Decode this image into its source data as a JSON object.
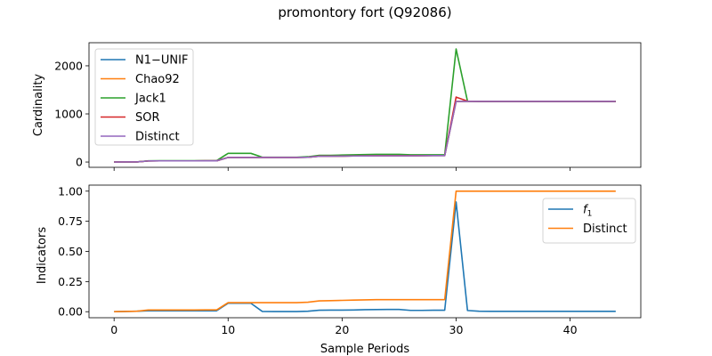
{
  "figure": {
    "title": "promontory fort (Q92086)",
    "xlabel": "Sample Periods"
  },
  "colors": {
    "blue": "#1f77b4",
    "orange": "#ff7f0e",
    "green": "#2ca02c",
    "red": "#d62728",
    "purple": "#9467bd"
  },
  "chart_data": [
    {
      "type": "line",
      "title": "",
      "xlabel": "",
      "ylabel": "Cardinality",
      "xlim": [
        -2.2,
        46.2
      ],
      "ylim": [
        -110,
        2480
      ],
      "xticks": [
        0,
        10,
        20,
        30,
        40
      ],
      "yticks": [
        0,
        1000,
        2000
      ],
      "ytick_labels": [
        "0",
        "1000",
        "2000"
      ],
      "legend_position": "upper-left",
      "x": [
        0,
        1,
        2,
        3,
        4,
        5,
        6,
        7,
        8,
        9,
        10,
        11,
        12,
        13,
        14,
        15,
        16,
        17,
        18,
        19,
        20,
        21,
        22,
        23,
        24,
        25,
        26,
        27,
        28,
        29,
        30,
        31,
        32,
        33,
        34,
        35,
        36,
        37,
        38,
        39,
        40,
        41,
        42,
        43,
        44
      ],
      "series": [
        {
          "name": "N1−UNIF",
          "color": "#1f77b4",
          "values": [
            0,
            2,
            2,
            22,
            24,
            24,
            24,
            24,
            25,
            25,
            95,
            95,
            95,
            95,
            95,
            95,
            95,
            100,
            120,
            120,
            122,
            126,
            128,
            130,
            130,
            130,
            130,
            132,
            133,
            133,
            1260,
            1260,
            1260,
            1260,
            1260,
            1260,
            1260,
            1260,
            1260,
            1260,
            1260,
            1260,
            1260,
            1260,
            1260
          ]
        },
        {
          "name": "Chao92",
          "color": "#ff7f0e",
          "values": [
            0,
            2,
            2,
            22,
            24,
            24,
            24,
            24,
            25,
            25,
            95,
            95,
            95,
            95,
            95,
            95,
            95,
            100,
            120,
            120,
            122,
            126,
            128,
            130,
            130,
            130,
            130,
            132,
            133,
            133,
            1260,
            1260,
            1260,
            1260,
            1260,
            1260,
            1260,
            1260,
            1260,
            1260,
            1260,
            1260,
            1260,
            1260,
            1260
          ]
        },
        {
          "name": "Jack1",
          "color": "#2ca02c",
          "values": [
            0,
            2,
            2,
            25,
            27,
            28,
            28,
            28,
            28,
            30,
            180,
            180,
            180,
            100,
            100,
            100,
            100,
            110,
            140,
            140,
            145,
            150,
            155,
            160,
            160,
            160,
            150,
            150,
            150,
            150,
            2350,
            1265,
            1260,
            1260,
            1260,
            1260,
            1260,
            1260,
            1260,
            1260,
            1260,
            1260,
            1260,
            1260,
            1260
          ]
        },
        {
          "name": "SOR",
          "color": "#d62728",
          "values": [
            0,
            2,
            2,
            22,
            24,
            24,
            24,
            24,
            25,
            25,
            96,
            96,
            96,
            96,
            96,
            96,
            96,
            100,
            122,
            122,
            124,
            128,
            130,
            132,
            132,
            132,
            132,
            134,
            135,
            135,
            1350,
            1265,
            1260,
            1260,
            1260,
            1260,
            1260,
            1260,
            1260,
            1260,
            1260,
            1260,
            1260,
            1260,
            1260
          ]
        },
        {
          "name": "Distinct",
          "color": "#9467bd",
          "values": [
            0,
            2,
            2,
            22,
            24,
            24,
            24,
            24,
            25,
            25,
            95,
            95,
            95,
            95,
            95,
            95,
            95,
            100,
            120,
            120,
            122,
            126,
            128,
            130,
            130,
            130,
            130,
            132,
            133,
            133,
            1260,
            1260,
            1260,
            1260,
            1260,
            1260,
            1260,
            1260,
            1260,
            1260,
            1260,
            1260,
            1260,
            1260,
            1260
          ]
        }
      ]
    },
    {
      "type": "line",
      "title": "",
      "xlabel": "Sample Periods",
      "ylabel": "Indicators",
      "xlim": [
        -2.2,
        46.2
      ],
      "ylim": [
        -0.05,
        1.05
      ],
      "xticks": [
        0,
        10,
        20,
        30,
        40
      ],
      "xtick_labels": [
        "0",
        "10",
        "20",
        "30",
        "40"
      ],
      "yticks": [
        0.0,
        0.25,
        0.5,
        0.75,
        1.0
      ],
      "ytick_labels": [
        "0.00",
        "0.25",
        "0.50",
        "0.75",
        "1.00"
      ],
      "legend_position": "upper-right",
      "x": [
        0,
        1,
        2,
        3,
        4,
        5,
        6,
        7,
        8,
        9,
        10,
        11,
        12,
        13,
        14,
        15,
        16,
        17,
        18,
        19,
        20,
        21,
        22,
        23,
        24,
        25,
        26,
        27,
        28,
        29,
        30,
        31,
        32,
        33,
        34,
        35,
        36,
        37,
        38,
        39,
        40,
        41,
        42,
        43,
        44
      ],
      "series": [
        {
          "name": "f",
          "subscript": "1",
          "color": "#1f77b4",
          "values": [
            0,
            0.002,
            0.004,
            0.008,
            0.008,
            0.008,
            0.008,
            0.008,
            0.008,
            0.008,
            0.07,
            0.07,
            0.07,
            0.002,
            0.001,
            0.001,
            0.001,
            0.004,
            0.012,
            0.013,
            0.013,
            0.014,
            0.017,
            0.018,
            0.019,
            0.019,
            0.011,
            0.011,
            0.012,
            0.012,
            0.91,
            0.01,
            0.004,
            0.003,
            0.003,
            0.003,
            0.003,
            0.003,
            0.003,
            0.003,
            0.003,
            0.003,
            0.003,
            0.003,
            0.003
          ]
        },
        {
          "name": "Distinct",
          "color": "#ff7f0e",
          "values": [
            0,
            0.002,
            0.004,
            0.014,
            0.014,
            0.014,
            0.014,
            0.014,
            0.015,
            0.015,
            0.075,
            0.075,
            0.075,
            0.075,
            0.075,
            0.075,
            0.075,
            0.079,
            0.09,
            0.092,
            0.094,
            0.096,
            0.098,
            0.1,
            0.1,
            0.1,
            0.1,
            0.1,
            0.1,
            0.1,
            1.0,
            1.0,
            1.0,
            1.0,
            1.0,
            1.0,
            1.0,
            1.0,
            1.0,
            1.0,
            1.0,
            1.0,
            1.0,
            1.0,
            1.0
          ]
        }
      ]
    }
  ]
}
